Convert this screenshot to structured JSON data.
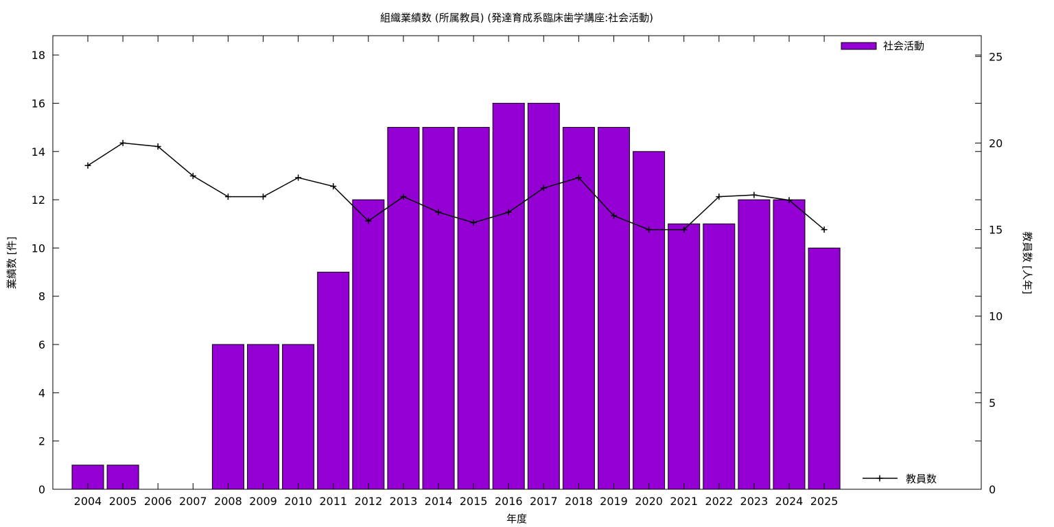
{
  "chart_data": {
    "type": "bar",
    "title": "組織業績数 (所属教員) (発達育成系臨床歯学講座:社会活動)",
    "xlabel": "年度",
    "ylabel": "業績数 [件]",
    "y2label": "教員数 [人年]",
    "categories": [
      "2004",
      "2005",
      "2006",
      "2007",
      "2008",
      "2009",
      "2010",
      "2011",
      "2012",
      "2013",
      "2014",
      "2015",
      "2016",
      "2017",
      "2018",
      "2019",
      "2020",
      "2021",
      "2022",
      "2023",
      "2024",
      "2025"
    ],
    "series": [
      {
        "name": "社会活動",
        "type": "bar",
        "axis": "left",
        "color": "#9400d3",
        "values": [
          1,
          1,
          0,
          0,
          6,
          6,
          6,
          9,
          12,
          15,
          15,
          15,
          16,
          16,
          15,
          15,
          14,
          11,
          11,
          12,
          12,
          10
        ]
      },
      {
        "name": "教員数",
        "type": "line",
        "axis": "right",
        "color": "#000000",
        "values": [
          18.7,
          20.0,
          19.8,
          18.1,
          16.9,
          16.9,
          18.0,
          17.5,
          15.5,
          16.9,
          16.0,
          15.4,
          16.0,
          17.4,
          18.0,
          15.8,
          15.0,
          15.0,
          16.9,
          17.0,
          16.7,
          15.0
        ]
      }
    ],
    "ylim": [
      0,
      18.8
    ],
    "y2lim": [
      0,
      26.2
    ],
    "yticks": [
      0,
      2,
      4,
      6,
      8,
      10,
      12,
      14,
      16,
      18
    ],
    "y2ticks": [
      0,
      5,
      10,
      15,
      20,
      25
    ],
    "grid": false,
    "legend_bar_position": "top-right",
    "legend_line_position": "bottom-right"
  }
}
